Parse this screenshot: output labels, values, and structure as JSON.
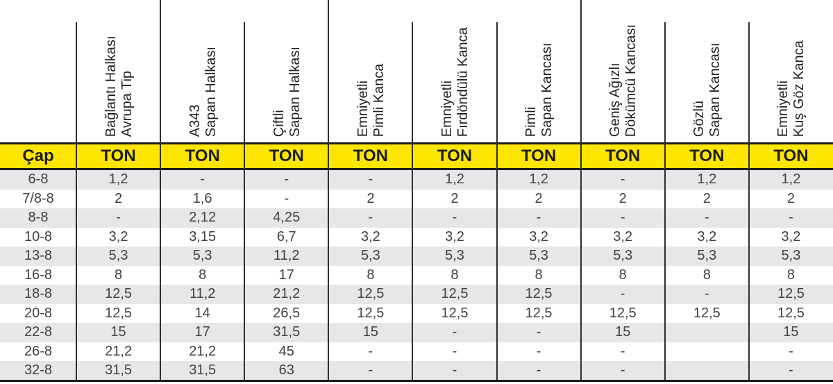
{
  "chart_data": {
    "type": "table",
    "corner_label": "Çap",
    "unit_label": "TON",
    "column_headers": [
      {
        "line1": "Bağlantı Halkası",
        "line2": "Avrupa Tip"
      },
      {
        "line1": "A343",
        "line2": "Sapan Halkası"
      },
      {
        "line1": "Çiftli",
        "line2": "Sapan Halkası"
      },
      {
        "line1": "Emniyetli",
        "line2": "Pimli Kanca"
      },
      {
        "line1": "Emniyetli",
        "line2": "Fırdöndülü Kanca"
      },
      {
        "line1": "Pimli",
        "line2": "Sapan Kancası"
      },
      {
        "line1": "Geniş Ağızlı",
        "line2": "Dökümcü Kancası"
      },
      {
        "line1": "Gözlü",
        "line2": "Sapan Kancası"
      },
      {
        "line1": "Emniyetli",
        "line2": "Kuş Göz Kanca"
      }
    ],
    "rows": [
      {
        "cap": "6-8",
        "values": [
          "1,2",
          "-",
          "-",
          "-",
          "1,2",
          "1,2",
          "-",
          "1,2",
          "1,2"
        ]
      },
      {
        "cap": "7/8-8",
        "values": [
          "2",
          "1,6",
          "-",
          "2",
          "2",
          "2",
          "2",
          "2",
          "2"
        ]
      },
      {
        "cap": "8-8",
        "values": [
          "-",
          "2,12",
          "4,25",
          "-",
          "-",
          "-",
          "-",
          "-",
          "-"
        ]
      },
      {
        "cap": "10-8",
        "values": [
          "3,2",
          "3,15",
          "6,7",
          "3,2",
          "3,2",
          "3,2",
          "3,2",
          "3,2",
          "3,2"
        ]
      },
      {
        "cap": "13-8",
        "values": [
          "5,3",
          "5,3",
          "11,2",
          "5,3",
          "5,3",
          "5,3",
          "5,3",
          "5,3",
          "5,3"
        ]
      },
      {
        "cap": "16-8",
        "values": [
          "8",
          "8",
          "17",
          "8",
          "8",
          "8",
          "8",
          "8",
          "8"
        ]
      },
      {
        "cap": "18-8",
        "values": [
          "12,5",
          "11,2",
          "21,2",
          "12,5",
          "12,5",
          "12,5",
          "-",
          "-",
          "12,5"
        ]
      },
      {
        "cap": "20-8",
        "values": [
          "12,5",
          "14",
          "26,5",
          "12,5",
          "12,5",
          "12,5",
          "12,5",
          "12,5",
          "12,5"
        ]
      },
      {
        "cap": "22-8",
        "values": [
          "15",
          "17",
          "31,5",
          "15",
          "-",
          "-",
          "15",
          "",
          "15"
        ]
      },
      {
        "cap": "26-8",
        "values": [
          "21,2",
          "21,2",
          "45",
          "-",
          "-",
          "-",
          "-",
          "",
          "-"
        ]
      },
      {
        "cap": "32-8",
        "values": [
          "31,5",
          "31,5",
          "63",
          "-",
          "-",
          "-",
          "-",
          "",
          "-"
        ]
      }
    ]
  },
  "colors": {
    "header_band": "#FFE600",
    "stripe": "#E6E7E8",
    "heading_text": "#231F20",
    "data_text": "#414042",
    "rule_line": "#2E2E2E"
  }
}
